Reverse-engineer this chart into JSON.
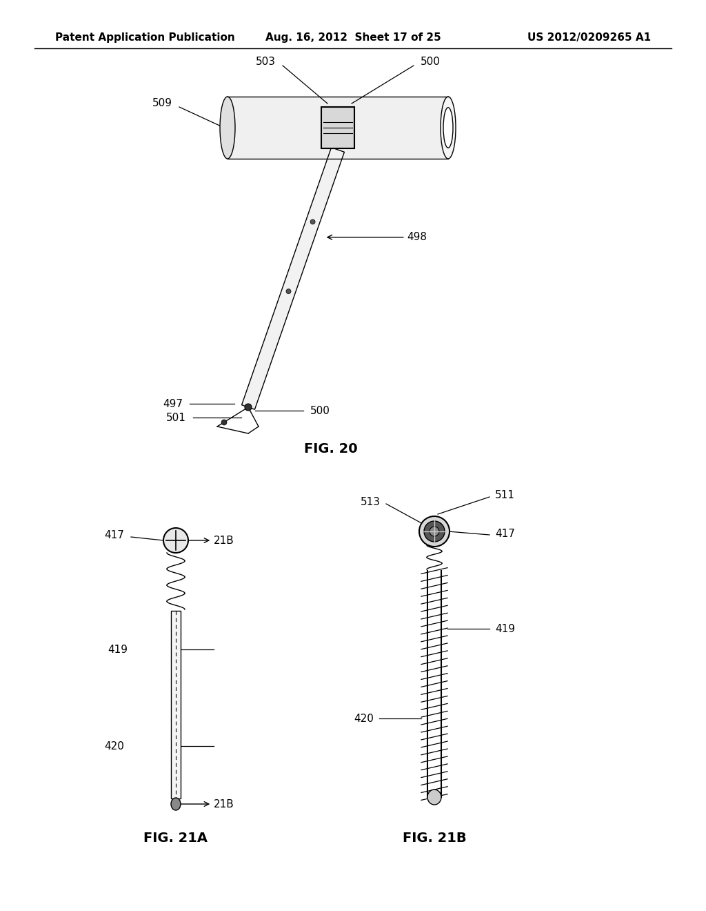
{
  "bg_color": "#ffffff",
  "line_color": "#000000",
  "header_left": "Patent Application Publication",
  "header_mid": "Aug. 16, 2012  Sheet 17 of 25",
  "header_right": "US 2012/0209265 A1",
  "fig20_label": "FIG. 20",
  "fig21a_label": "FIG. 21A",
  "fig21b_label": "FIG. 21B"
}
